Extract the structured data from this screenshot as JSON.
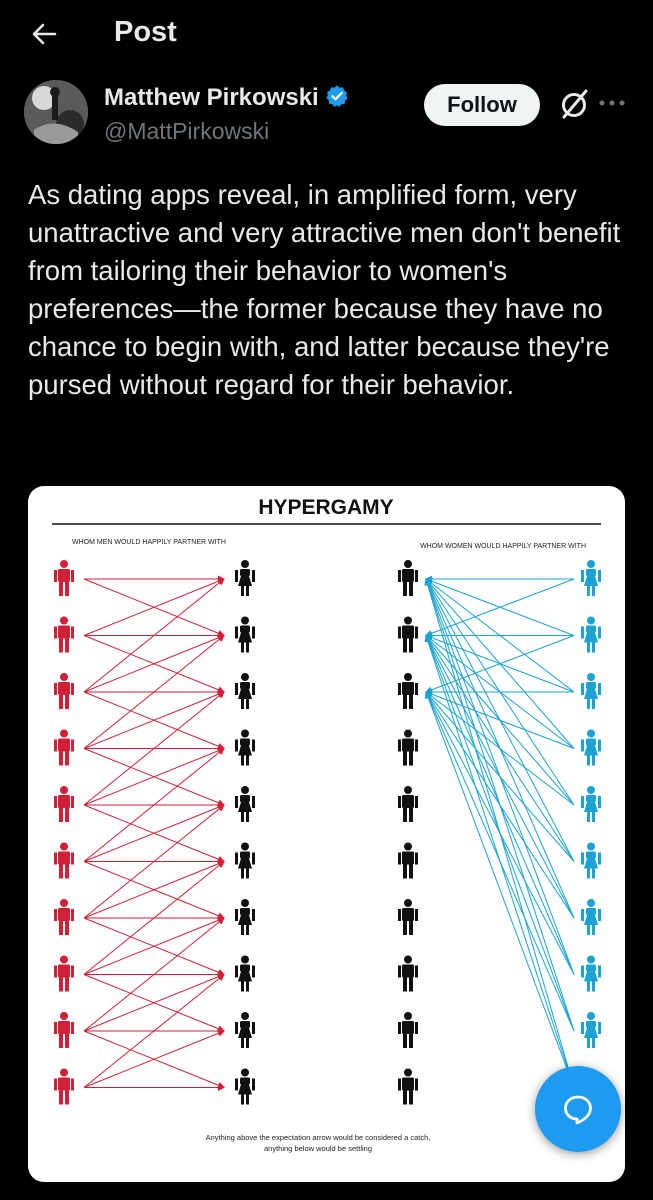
{
  "header": {
    "title": "Post"
  },
  "post": {
    "author_name": "Matthew Pirkowski",
    "author_handle": "@MattPirkowski",
    "follow_label": "Follow",
    "text": "As dating apps reveal, in amplified form, very unattractive and very attractive men don't benefit from tailoring their behavior to women's preferences—the former because they have no chance to begin with, and latter because they're pursed without regard for their behavior."
  },
  "diagram": {
    "title": "HYPERGAMY",
    "left_caption": "WHOM MEN WOULD HAPPILY PARTNER WITH",
    "right_caption": "WHOM WOMEN WOULD HAPPILY PARTNER WITH",
    "footer_line1": "Anything above the expectation arrow would be considered a catch,",
    "footer_line2": "anything below would be settling",
    "figures_per_column": 10,
    "men_arrow_targets": [
      [
        0,
        1
      ],
      [
        0,
        1,
        2
      ],
      [
        0,
        1,
        2,
        3
      ],
      [
        1,
        2,
        3,
        4
      ],
      [
        2,
        3,
        4,
        5
      ],
      [
        3,
        4,
        5,
        6
      ],
      [
        4,
        5,
        6,
        7
      ],
      [
        5,
        6,
        7,
        8
      ],
      [
        6,
        7,
        8,
        9
      ],
      [
        7,
        8,
        9
      ]
    ],
    "women_arrow_targets": [
      [
        0,
        1
      ],
      [
        0,
        1,
        2
      ],
      [
        0,
        1,
        2
      ],
      [
        0,
        1,
        2
      ],
      [
        0,
        1,
        2
      ],
      [
        0,
        1,
        2
      ],
      [
        0,
        1,
        2
      ],
      [
        0,
        1,
        2
      ],
      [
        0,
        1,
        2
      ],
      [
        0,
        1,
        2
      ]
    ],
    "colors": {
      "men_side": "#d21f35",
      "women_side": "#1aa3d4",
      "neutral": "#111111"
    }
  },
  "icons": {
    "back": "arrow-left-icon",
    "verified": "verified-badge-icon",
    "grok": "grok-icon",
    "more": "more-dots-icon",
    "compose": "chat-bubble-icon"
  }
}
